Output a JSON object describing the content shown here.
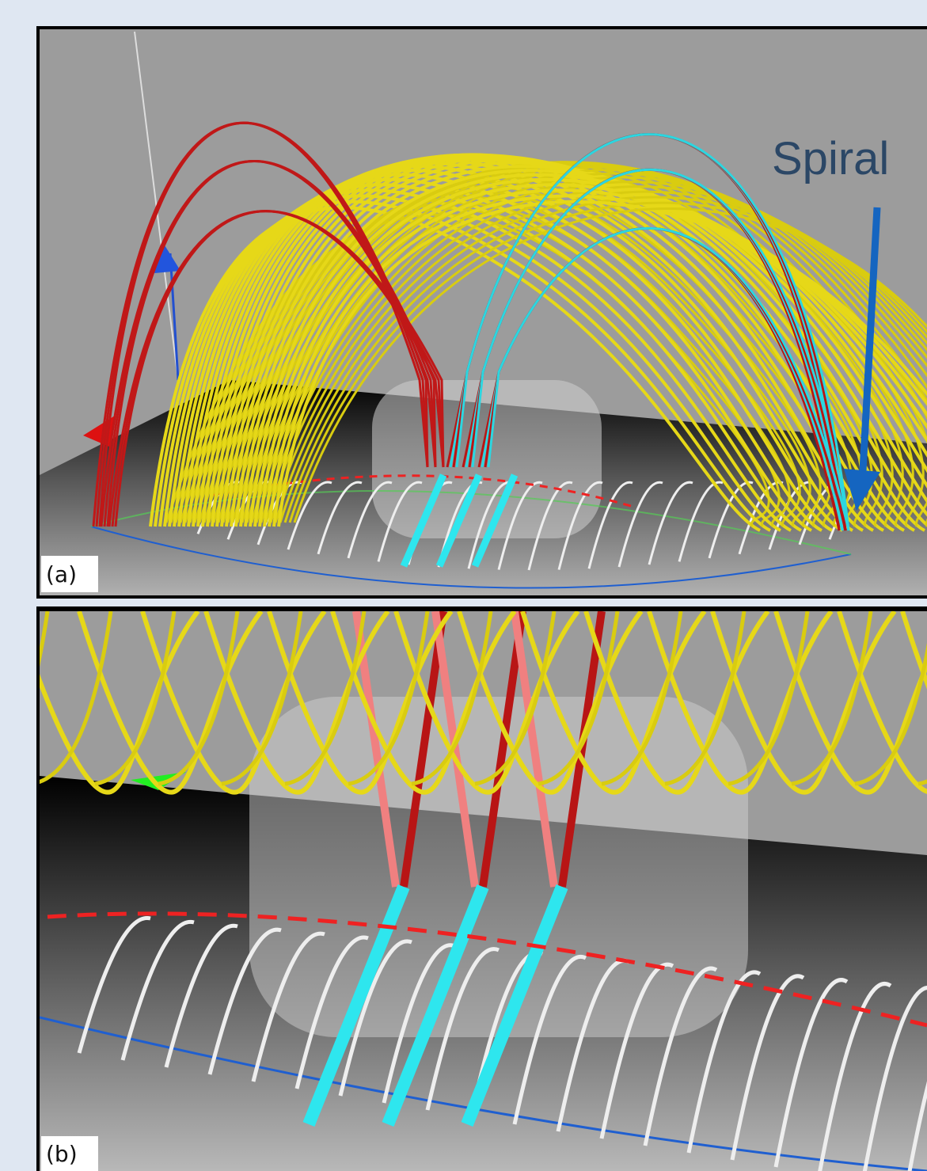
{
  "panels": [
    {
      "label": "(a)"
    },
    {
      "label": "(b)"
    }
  ],
  "annotation": "Spiral"
}
